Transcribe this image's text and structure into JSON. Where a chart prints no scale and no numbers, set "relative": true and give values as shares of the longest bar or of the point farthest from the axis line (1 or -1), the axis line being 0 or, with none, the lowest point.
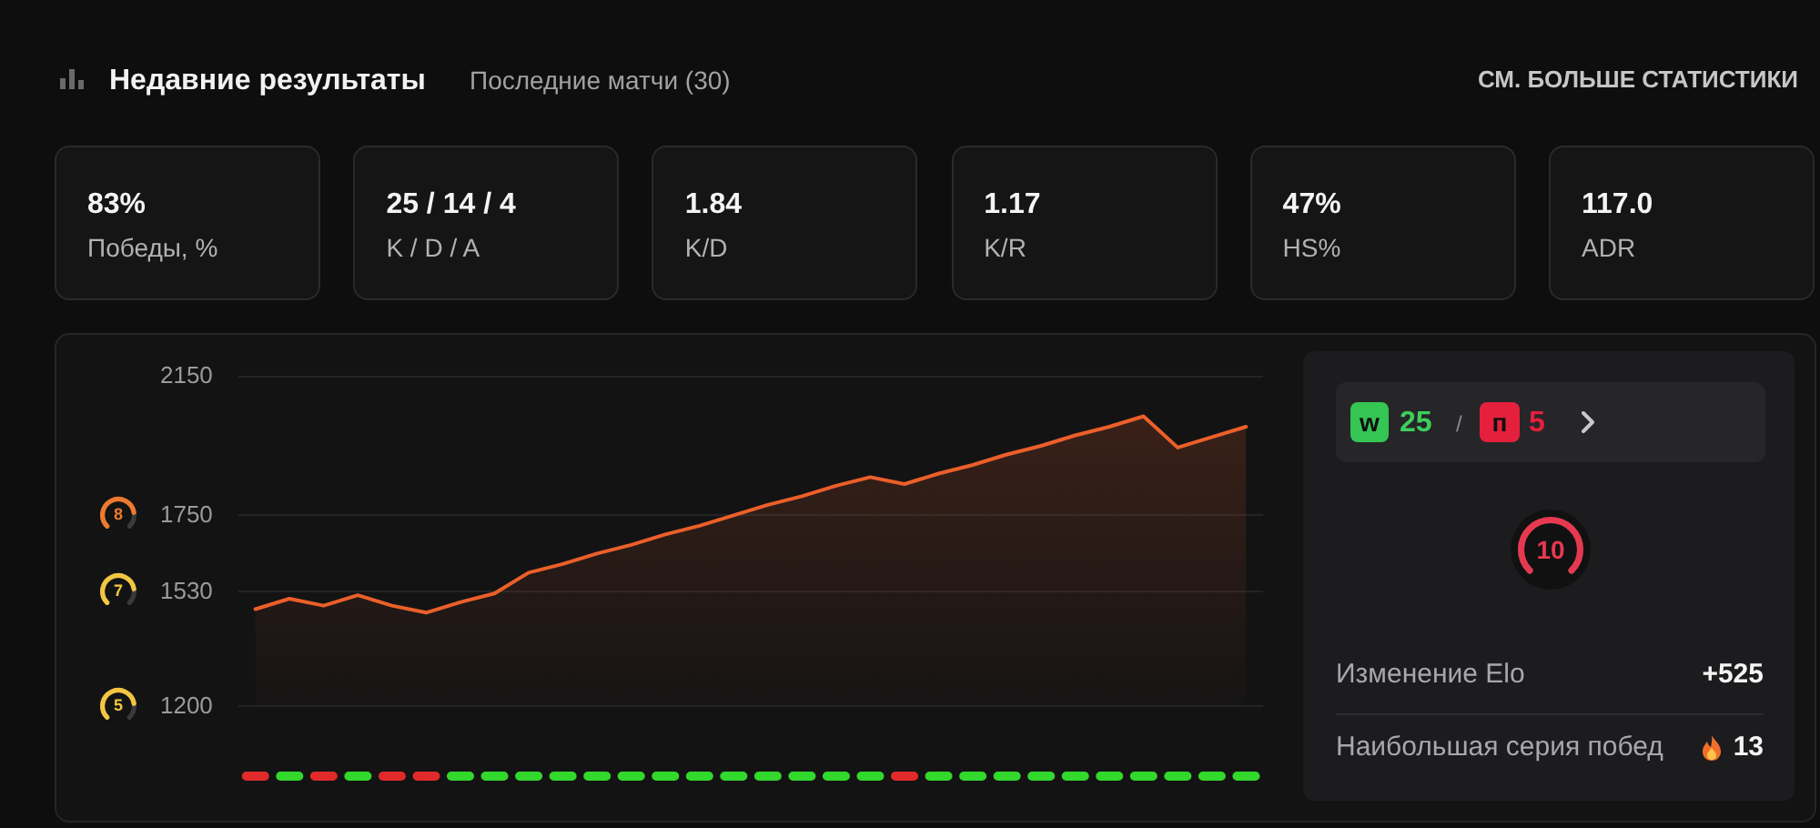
{
  "chart_data": [
    {
      "type": "other",
      "title": "Недавние результаты",
      "subtitle": "Последние матчи (30)",
      "annotations": [
        "СМ. БОЛЬШЕ СТАТИСТИКИ",
        "83%",
        "Победы, %",
        "25 / 14 / 4",
        "K / D / A",
        "1.84",
        "K/D",
        "1.17",
        "K/R",
        "47%",
        "HS%",
        "117.0",
        "ADR"
      ]
    },
    {
      "type": "area",
      "categories": [
        null,
        null,
        null,
        null,
        null,
        null,
        null,
        null,
        null,
        null,
        null,
        null,
        null,
        null,
        null,
        null,
        null,
        null,
        null,
        null,
        null,
        null,
        null,
        null,
        null,
        null,
        null,
        null,
        null,
        null
      ],
      "values": [
        1480,
        1510,
        1490,
        1520,
        1490,
        1470,
        1500,
        1525,
        1585,
        1610,
        1640,
        1665,
        1695,
        1720,
        1750,
        1780,
        1805,
        1835,
        1860,
        1840,
        1870,
        1895,
        1925,
        1950,
        1980,
        2005,
        2035,
        1945,
        1975,
        2005
      ],
      "color": "#ec5f2a",
      "ylim": [
        1200,
        2150
      ],
      "yticks": [
        1200,
        1530,
        1750,
        2150
      ],
      "grid": "y",
      "annotations": [
        "5",
        "7",
        "8"
      ]
    },
    {
      "type": "bar",
      "relative": true,
      "categories": [
        null,
        null,
        null,
        null,
        null,
        null,
        null,
        null,
        null,
        null,
        null,
        null,
        null,
        null,
        null,
        null,
        null,
        null,
        null,
        null,
        null,
        null,
        null,
        null,
        null,
        null,
        null,
        null,
        null,
        null
      ],
      "values": [
        1,
        1,
        1,
        1,
        1,
        1,
        1,
        1,
        1,
        1,
        1,
        1,
        1,
        1,
        1,
        1,
        1,
        1,
        1,
        1,
        1,
        1,
        1,
        1,
        1,
        1,
        1,
        1,
        1,
        1
      ],
      "colors": [
        "#e02a2a",
        "#32d82c",
        "#e02a2a",
        "#32d82c",
        "#e02a2a",
        "#e02a2a",
        "#32d82c",
        "#32d82c",
        "#32d82c",
        "#32d82c",
        "#32d82c",
        "#32d82c",
        "#32d82c",
        "#32d82c",
        "#32d82c",
        "#32d82c",
        "#32d82c",
        "#32d82c",
        "#32d82c",
        "#e02a2a",
        "#32d82c",
        "#32d82c",
        "#32d82c",
        "#32d82c",
        "#32d82c",
        "#32d82c",
        "#32d82c",
        "#32d82c",
        "#32d82c",
        "#32d82c"
      ]
    },
    {
      "type": "other",
      "annotations": [
        "w",
        "25",
        "/",
        "п",
        "5",
        "10",
        "Изменение Elo",
        "+525",
        "Наибольшая серия побед",
        "13"
      ]
    }
  ]
}
